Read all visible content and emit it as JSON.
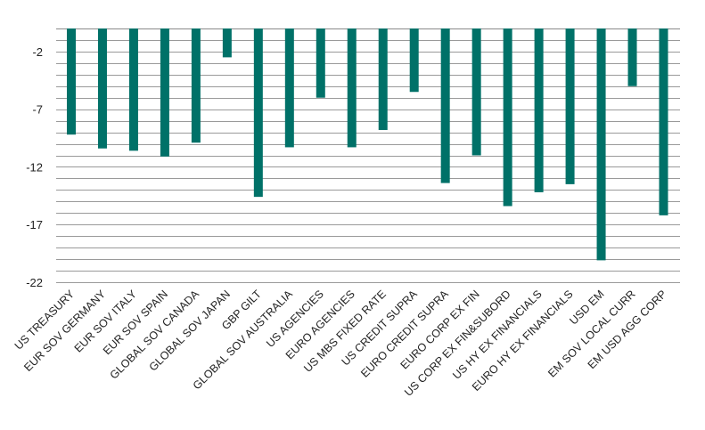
{
  "chart_data": {
    "type": "bar",
    "title": "",
    "xlabel": "",
    "ylabel": "",
    "categories": [
      "US TREASURY",
      "EUR SOV GERMANY",
      "EUR SOV ITALY",
      "EUR SOV SPAIN",
      "GLOBAL SOV CANADA",
      "GLOBAL SOV JAPAN",
      "GBP GILT",
      "GLOBAL SOV AUSTRALIA",
      "US AGENCIES",
      "EURO AGENCIES",
      "US MBS FIXED RATE",
      "US CREDIT SUPRA",
      "EURO CREDIT SUPRA",
      "EURO CORP EX FIN",
      "US CORP EX FIN&SUBORD",
      "US HY EX FINANCIALS",
      "EURO HY EX FINANCIALS",
      "USD EM",
      "EM SOV LOCAL CURR",
      "EM USD AGG CORP"
    ],
    "values": [
      -9.2,
      -10.4,
      -10.6,
      -11.1,
      -9.9,
      -2.5,
      -14.6,
      -10.3,
      -6.0,
      -10.3,
      -8.8,
      -5.5,
      -13.4,
      -11.0,
      -15.4,
      -14.2,
      -13.5,
      -20.1,
      -5.0,
      -16.2
    ],
    "ylim": [
      -22,
      0
    ],
    "yticks": [
      -2,
      -7,
      -12,
      -17,
      -22
    ],
    "grid": true,
    "color": "#007168",
    "axis_color": "#8a8a8a",
    "grid_color": "#9a9a9a"
  }
}
